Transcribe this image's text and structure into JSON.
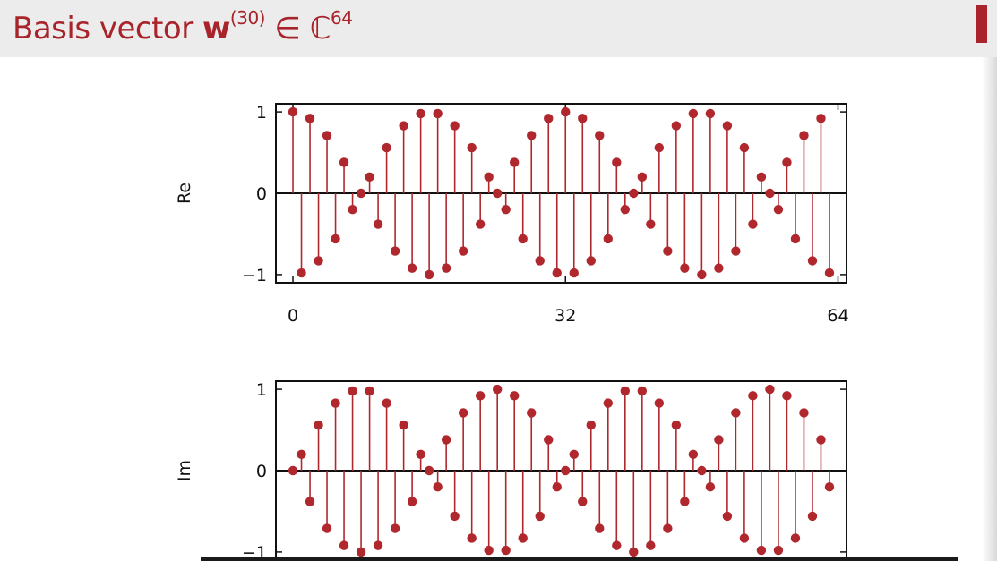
{
  "header": {
    "title_prefix": "Basis vector ",
    "title_vector": "w",
    "title_superscript": "(30)",
    "title_in": " ∈ ℂ",
    "title_dimension": "64"
  },
  "colors": {
    "accent": "#a8232a",
    "stem": "#b0282e",
    "header_bg": "#ececec"
  },
  "chart_data": [
    {
      "type": "stem",
      "ylabel": "Re",
      "xlim": [
        -2,
        65
      ],
      "ylim": [
        -1.1,
        1.1
      ],
      "xticks": [
        "0",
        "32",
        "64"
      ],
      "yticks": [
        "1",
        "0",
        "−1"
      ],
      "x": [
        0,
        1,
        2,
        3,
        4,
        5,
        6,
        7,
        8,
        9,
        10,
        11,
        12,
        13,
        14,
        15,
        16,
        17,
        18,
        19,
        20,
        21,
        22,
        23,
        24,
        25,
        26,
        27,
        28,
        29,
        30,
        31,
        32,
        33,
        34,
        35,
        36,
        37,
        38,
        39,
        40,
        41,
        42,
        43,
        44,
        45,
        46,
        47,
        48,
        49,
        50,
        51,
        52,
        53,
        54,
        55,
        56,
        57,
        58,
        59,
        60,
        61,
        62,
        63
      ],
      "values": [
        1.0,
        -0.98,
        0.92,
        -0.83,
        0.71,
        -0.56,
        0.38,
        -0.2,
        0.0,
        0.2,
        -0.38,
        0.56,
        -0.71,
        0.83,
        -0.92,
        0.98,
        -1.0,
        0.98,
        -0.92,
        0.83,
        -0.71,
        0.56,
        -0.38,
        0.2,
        0.0,
        -0.2,
        0.38,
        -0.56,
        0.71,
        -0.83,
        0.92,
        -0.98,
        1.0,
        -0.98,
        0.92,
        -0.83,
        0.71,
        -0.56,
        0.38,
        -0.2,
        0.0,
        0.2,
        -0.38,
        0.56,
        -0.71,
        0.83,
        -0.92,
        0.98,
        -1.0,
        0.98,
        -0.92,
        0.83,
        -0.71,
        0.56,
        -0.38,
        0.2,
        0.0,
        -0.2,
        0.38,
        -0.56,
        0.71,
        -0.83,
        0.92,
        -0.98
      ],
      "grid": false
    },
    {
      "type": "stem",
      "ylabel": "Im",
      "xlim": [
        -2,
        65
      ],
      "ylim": [
        -1.1,
        1.1
      ],
      "xticks": [],
      "yticks": [
        "1",
        "0",
        "−1"
      ],
      "x": [
        0,
        1,
        2,
        3,
        4,
        5,
        6,
        7,
        8,
        9,
        10,
        11,
        12,
        13,
        14,
        15,
        16,
        17,
        18,
        19,
        20,
        21,
        22,
        23,
        24,
        25,
        26,
        27,
        28,
        29,
        30,
        31,
        32,
        33,
        34,
        35,
        36,
        37,
        38,
        39,
        40,
        41,
        42,
        43,
        44,
        45,
        46,
        47,
        48,
        49,
        50,
        51,
        52,
        53,
        54,
        55,
        56,
        57,
        58,
        59,
        60,
        61,
        62,
        63
      ],
      "values": [
        0.0,
        0.2,
        -0.38,
        0.56,
        -0.71,
        0.83,
        -0.92,
        0.98,
        -1.0,
        0.98,
        -0.92,
        0.83,
        -0.71,
        0.56,
        -0.38,
        0.2,
        0.0,
        -0.2,
        0.38,
        -0.56,
        0.71,
        -0.83,
        0.92,
        -0.98,
        1.0,
        -0.98,
        0.92,
        -0.83,
        0.71,
        -0.56,
        0.38,
        -0.2,
        0.0,
        0.2,
        -0.38,
        0.56,
        -0.71,
        0.83,
        -0.92,
        0.98,
        -1.0,
        0.98,
        -0.92,
        0.83,
        -0.71,
        0.56,
        -0.38,
        0.2,
        0.0,
        -0.2,
        0.38,
        -0.56,
        0.71,
        -0.83,
        0.92,
        -0.98,
        1.0,
        -0.98,
        0.92,
        -0.83,
        0.71,
        -0.56,
        0.38,
        -0.2
      ],
      "grid": false
    }
  ]
}
